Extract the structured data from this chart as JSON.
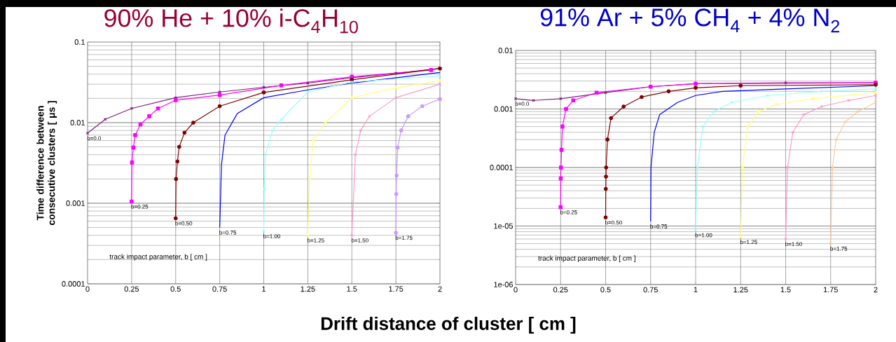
{
  "chart_data": [
    {
      "type": "line",
      "title": "90% He + 10% i-C$_{4}$H$_{10}$",
      "xlabel": "Drift distance of cluster [ cm ]",
      "ylabel": "Time difference between consecutive clusters [ μs ]",
      "log": true,
      "grid": true,
      "xlim": [
        0,
        2
      ],
      "ylim": [
        0.0001,
        0.1
      ],
      "xticks": [
        0,
        0.25,
        0.5,
        0.75,
        1,
        1.25,
        1.5,
        1.75,
        2
      ],
      "yticks": [
        0.0001,
        0.001,
        0.01,
        0.1
      ],
      "series": [
        {
          "name": "b=0.0",
          "color": "#7b1f7b",
          "marker": "cross",
          "x": [
            0,
            0.1,
            0.25,
            0.5,
            0.75,
            1,
            1.25,
            1.5,
            1.75,
            2
          ],
          "values": [
            0.0074,
            0.011,
            0.015,
            0.0204,
            0.024,
            0.0275,
            0.031,
            0.036,
            0.041,
            0.047
          ]
        },
        {
          "name": "b=0.25",
          "color": "#ff00ff",
          "marker": "square",
          "x": [
            0.25,
            0.252,
            0.26,
            0.27,
            0.3,
            0.35,
            0.4,
            0.5,
            0.75,
            1.1,
            1.5,
            1.95
          ],
          "values": [
            0.00105,
            0.0032,
            0.0049,
            0.007,
            0.0095,
            0.012,
            0.015,
            0.019,
            0.022,
            0.029,
            0.037,
            0.045
          ]
        },
        {
          "name": "b=0.50",
          "color": "#800000",
          "marker": "circle",
          "x": [
            0.5,
            0.502,
            0.51,
            0.52,
            0.55,
            0.6,
            0.75,
            1,
            1.5,
            2
          ],
          "values": [
            0.00065,
            0.002,
            0.0033,
            0.005,
            0.0075,
            0.01,
            0.016,
            0.0237,
            0.034,
            0.047
          ]
        },
        {
          "name": "b=0.75",
          "color": "#0000ff",
          "marker": "none",
          "x": [
            0.75,
            0.76,
            0.78,
            0.85,
            1,
            1.25,
            1.5,
            2
          ],
          "values": [
            0.0005,
            0.003,
            0.007,
            0.013,
            0.0204,
            0.0255,
            0.031,
            0.042
          ]
        },
        {
          "name": "b=1.00",
          "color": "#99ffff",
          "marker": "cross",
          "x": [
            1,
            1.003,
            1.01,
            1.05,
            1.1,
            1.25,
            1.5,
            2
          ],
          "values": [
            0.00045,
            0.0015,
            0.004,
            0.008,
            0.011,
            0.024,
            0.032,
            0.038
          ]
        },
        {
          "name": "b=1.25",
          "color": "#ffff80",
          "marker": "triangle",
          "x": [
            1.25,
            1.26,
            1.28,
            1.35,
            1.5,
            1.75,
            2
          ],
          "values": [
            0.0004,
            0.002,
            0.006,
            0.01,
            0.0204,
            0.027,
            0.033
          ]
        },
        {
          "name": "b=1.50",
          "color": "#ff99cc",
          "marker": "cross",
          "x": [
            1.5,
            1.52,
            1.55,
            1.6,
            1.75,
            2
          ],
          "values": [
            0.0004,
            0.004,
            0.008,
            0.012,
            0.0204,
            0.03
          ]
        },
        {
          "name": "b=1.75",
          "color": "#cc99ff",
          "marker": "circle",
          "x": [
            1.75,
            1.752,
            1.754,
            1.76,
            1.78,
            1.82,
            1.9,
            2
          ],
          "values": [
            0.00043,
            0.0013,
            0.0022,
            0.0049,
            0.008,
            0.012,
            0.016,
            0.0196
          ]
        }
      ],
      "annotations": [
        "track impact parameter, b [ cm ]"
      ]
    },
    {
      "type": "line",
      "title": "91% Ar + 5% CH$_{4}$ + 4% N$_{2}$",
      "log": true,
      "grid": true,
      "xlim": [
        0,
        2
      ],
      "ylim": [
        1e-06,
        0.01
      ],
      "xticks": [
        0,
        0.25,
        0.5,
        0.75,
        1,
        1.25,
        1.5,
        1.75,
        2
      ],
      "yticks": [
        1e-06,
        1e-05,
        0.0001,
        0.001,
        0.01
      ],
      "series": [
        {
          "name": "b=0.0",
          "color": "#7b1f7b",
          "marker": "cross",
          "x": [
            0,
            0.1,
            0.25,
            0.5,
            0.75,
            1,
            1.5,
            2
          ],
          "values": [
            0.0015,
            0.0014,
            0.0015,
            0.0019,
            0.0024,
            0.0027,
            0.0028,
            0.0028
          ]
        },
        {
          "name": "b=0.25",
          "color": "#ff00ff",
          "marker": "square",
          "x": [
            0.25,
            0.251,
            0.252,
            0.255,
            0.26,
            0.28,
            0.32,
            0.45,
            0.75,
            1,
            2
          ],
          "values": [
            2.1e-05,
            6.5e-05,
            0.0001,
            0.0002,
            0.0005,
            0.001,
            0.0014,
            0.0019,
            0.0024,
            0.0027,
            0.0028
          ]
        },
        {
          "name": "b=0.50",
          "color": "#800000",
          "marker": "circle",
          "x": [
            0.5,
            0.501,
            0.502,
            0.503,
            0.51,
            0.53,
            0.6,
            0.7,
            0.85,
            1,
            1.25,
            2
          ],
          "values": [
            1.4e-05,
            4.3e-05,
            7e-05,
            0.0001,
            0.0003,
            0.0007,
            0.0011,
            0.0016,
            0.002,
            0.0023,
            0.0025,
            0.0026
          ]
        },
        {
          "name": "b=0.75",
          "color": "#0000ff",
          "marker": "none",
          "x": [
            0.75,
            0.752,
            0.77,
            0.8,
            0.9,
            1,
            1.15,
            1.5,
            2
          ],
          "values": [
            1.2e-05,
            0.0001,
            0.0004,
            0.0008,
            0.0013,
            0.0017,
            0.002,
            0.0022,
            0.0025
          ]
        },
        {
          "name": "b=1.00",
          "color": "#99ffff",
          "marker": "cross",
          "x": [
            1,
            1.01,
            1.04,
            1.1,
            1.2,
            1.4,
            1.7,
            2
          ],
          "values": [
            8.5e-06,
            0.0001,
            0.0005,
            0.0009,
            0.0013,
            0.0017,
            0.002,
            0.0022
          ]
        },
        {
          "name": "b=1.25",
          "color": "#ffff80",
          "marker": "triangle",
          "x": [
            1.25,
            1.26,
            1.29,
            1.35,
            1.45,
            1.65,
            2
          ],
          "values": [
            6.5e-06,
            0.0001,
            0.0005,
            0.0009,
            0.0012,
            0.0015,
            0.0019
          ]
        },
        {
          "name": "b=1.50",
          "color": "#ff99cc",
          "marker": "cross",
          "x": [
            1.5,
            1.51,
            1.54,
            1.6,
            1.7,
            1.85,
            2
          ],
          "values": [
            6e-06,
            0.0001,
            0.0004,
            0.0008,
            0.0011,
            0.0014,
            0.0017
          ]
        },
        {
          "name": "b=1.75",
          "color": "#ffcc99",
          "marker": "cross",
          "x": [
            1.75,
            1.76,
            1.78,
            1.83,
            1.9,
            2
          ],
          "values": [
            5e-06,
            0.0001,
            0.0003,
            0.0006,
            0.0009,
            0.0013
          ]
        }
      ],
      "annotations": [
        "track impact parameter, b [ cm ]"
      ]
    }
  ]
}
